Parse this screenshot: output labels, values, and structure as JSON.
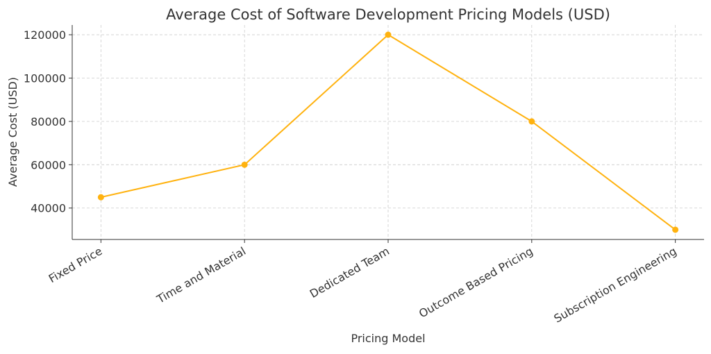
{
  "chart_data": {
    "type": "line",
    "title": "Average Cost of Software Development Pricing Models (USD)",
    "xlabel": "Pricing Model",
    "ylabel": "Average Cost (USD)",
    "categories": [
      "Fixed Price",
      "Time and Material",
      "Dedicated Team",
      "Outcome Based Pricing",
      "Subscription Engineering"
    ],
    "values": [
      45000,
      60000,
      120000,
      80000,
      30000
    ],
    "ylim": [
      25500,
      124500
    ],
    "yticks": [
      40000,
      60000,
      80000,
      100000,
      120000
    ],
    "ytick_labels": [
      "40000",
      "60000",
      "80000",
      "100000",
      "120000"
    ],
    "grid": true,
    "marker": "circle",
    "color": "#FFB20F"
  }
}
